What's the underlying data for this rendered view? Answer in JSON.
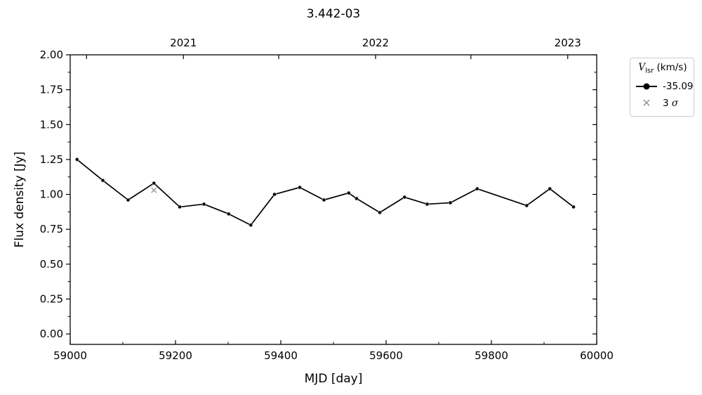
{
  "chart_data": {
    "type": "line",
    "title": "3.442-03",
    "xlabel": "MJD [day]",
    "ylabel": "Flux density [Jy]",
    "xlim": [
      59000,
      60000
    ],
    "ylim": [
      -0.075,
      2.0
    ],
    "x_major_ticks": [
      59000,
      59200,
      59400,
      59600,
      59800,
      60000
    ],
    "x_minor_ticks": [
      59100,
      59300,
      59500,
      59700,
      59900
    ],
    "y_major_ticks": [
      0.0,
      0.25,
      0.5,
      0.75,
      1.0,
      1.25,
      1.5,
      1.75,
      2.0
    ],
    "y_minor_ticks": [
      0.125,
      0.375,
      0.625,
      0.875,
      1.125,
      1.375,
      1.625,
      1.875
    ],
    "top_axis": {
      "ticks_mjd": [
        59031,
        59215,
        59396,
        59580,
        59761,
        59945
      ],
      "year_labels": [
        {
          "text": "2021",
          "mjd": 59215
        },
        {
          "text": "2022",
          "mjd": 59580
        },
        {
          "text": "2023",
          "mjd": 59945
        }
      ]
    },
    "grid": false,
    "legend_position": "outside-upper-right",
    "series": [
      {
        "name": "-35.09",
        "style": "line-with-circle-markers",
        "color": "#000000",
        "x": [
          59013,
          59062,
          59110,
          59159,
          59208,
          59254,
          59301,
          59343,
          59388,
          59436,
          59482,
          59529,
          59544,
          59588,
          59635,
          59678,
          59722,
          59773,
          59867,
          59911,
          59956
        ],
        "y": [
          1.25,
          1.1,
          0.96,
          1.08,
          0.91,
          0.93,
          0.86,
          0.78,
          1.0,
          1.05,
          0.96,
          1.01,
          0.97,
          0.87,
          0.98,
          0.93,
          0.94,
          1.04,
          0.92,
          1.04,
          0.91
        ]
      },
      {
        "name": "3 σ",
        "style": "x-markers",
        "color": "#999999",
        "x": [
          59159
        ],
        "y": [
          1.03
        ]
      }
    ]
  },
  "legend": {
    "title": {
      "v": "V",
      "sub": "lsr",
      "rest": " (km/s)"
    },
    "entries": [
      {
        "label": "-35.09"
      },
      {
        "label_prefix": "3 ",
        "sigma": "σ"
      }
    ],
    "x_glyph": "✕"
  },
  "colors": {
    "line": "#000000",
    "sigma_marker": "#999999",
    "marker_edge": "#aaaaaa",
    "legend_border": "#cccccc",
    "axis": "#000000"
  }
}
